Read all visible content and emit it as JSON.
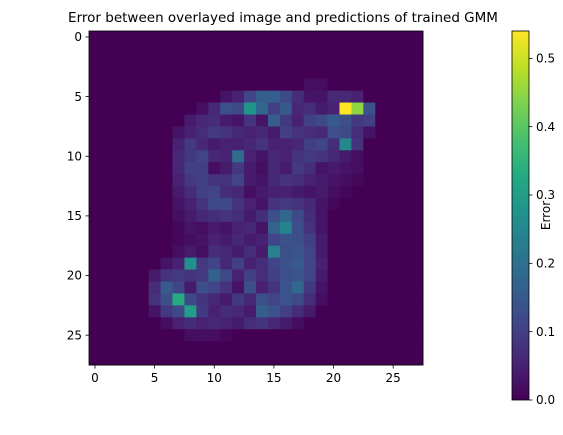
{
  "chart_data": {
    "type": "heatmap",
    "title": "Error between overlayed image and predictions of trained GMM",
    "x_ticks": [
      0,
      5,
      10,
      15,
      20,
      25
    ],
    "y_ticks": [
      0,
      5,
      10,
      15,
      20,
      25
    ],
    "grid_size": [
      28,
      28
    ],
    "colorbar": {
      "label": "Error",
      "range": [
        0.0,
        0.54
      ],
      "ticks": [
        "0.0",
        "0.1",
        "0.2",
        "0.3",
        "0.4",
        "0.5"
      ],
      "tick_values": [
        0.0,
        0.1,
        0.2,
        0.3,
        0.4,
        0.5
      ],
      "colormap": "viridis"
    },
    "grid": false,
    "matrix": [
      [
        0,
        0,
        0,
        0,
        0,
        0,
        0,
        0,
        0,
        0,
        0,
        0,
        0,
        0,
        0,
        0,
        0,
        0,
        0,
        0,
        0,
        0,
        0,
        0,
        0,
        0,
        0,
        0
      ],
      [
        0,
        0,
        0,
        0,
        0,
        0,
        0,
        0,
        0,
        0,
        0,
        0,
        0,
        0,
        0,
        0,
        0,
        0,
        0,
        0,
        0,
        0,
        0,
        0,
        0,
        0,
        0,
        0
      ],
      [
        0,
        0,
        0,
        0,
        0,
        0,
        0,
        0,
        0,
        0,
        0,
        0,
        0,
        0,
        0,
        0,
        0,
        0,
        0,
        0,
        0,
        0,
        0,
        0,
        0,
        0,
        0,
        0
      ],
      [
        0,
        0,
        0,
        0,
        0,
        0,
        0,
        0,
        0,
        0,
        0,
        0,
        0,
        0,
        0,
        0,
        0,
        0,
        0,
        0,
        0,
        0,
        0,
        0,
        0,
        0,
        0,
        0
      ],
      [
        0,
        0,
        0,
        0,
        0,
        0,
        0,
        0,
        0,
        0,
        0,
        0,
        0,
        0,
        0,
        0,
        0,
        0,
        0.02,
        0.02,
        0,
        0,
        0,
        0,
        0,
        0,
        0,
        0
      ],
      [
        0,
        0,
        0,
        0,
        0,
        0,
        0,
        0,
        0,
        0,
        0,
        0.03,
        0.05,
        0.11,
        0.16,
        0.16,
        0.12,
        0.07,
        0.03,
        0.03,
        0.06,
        0.06,
        0.05,
        0,
        0,
        0,
        0,
        0
      ],
      [
        0,
        0,
        0,
        0,
        0,
        0,
        0,
        0,
        0,
        0.02,
        0.06,
        0.13,
        0.12,
        0.28,
        0.18,
        0.1,
        0.15,
        0.06,
        0.07,
        0.04,
        0.05,
        0.54,
        0.45,
        0.14,
        0,
        0,
        0,
        0
      ],
      [
        0,
        0,
        0,
        0,
        0,
        0,
        0,
        0,
        0.04,
        0.06,
        0.07,
        0.04,
        0.03,
        0.08,
        0.03,
        0.16,
        0.09,
        0.05,
        0.1,
        0.12,
        0.15,
        0.13,
        0.09,
        0.1,
        0,
        0,
        0,
        0
      ],
      [
        0,
        0,
        0,
        0,
        0,
        0,
        0,
        0.03,
        0.05,
        0.07,
        0.09,
        0.08,
        0.06,
        0.05,
        0.06,
        0.04,
        0.1,
        0.08,
        0.07,
        0.06,
        0.13,
        0.12,
        0.07,
        0.03,
        0,
        0,
        0,
        0
      ],
      [
        0,
        0,
        0,
        0,
        0,
        0,
        0,
        0.05,
        0.09,
        0.06,
        0.04,
        0.05,
        0.05,
        0.06,
        0.08,
        0.05,
        0.05,
        0.06,
        0.1,
        0.11,
        0.07,
        0.25,
        0.08,
        0,
        0,
        0,
        0,
        0
      ],
      [
        0,
        0,
        0,
        0,
        0,
        0,
        0,
        0.06,
        0.09,
        0.11,
        0.06,
        0.05,
        0.19,
        0.05,
        0.03,
        0.06,
        0.05,
        0.08,
        0.09,
        0.08,
        0.06,
        0.04,
        0.02,
        0,
        0,
        0,
        0,
        0
      ],
      [
        0,
        0,
        0,
        0,
        0,
        0,
        0,
        0.06,
        0.1,
        0.1,
        0.02,
        0.04,
        0.09,
        0.04,
        0.02,
        0.06,
        0.04,
        0.09,
        0.07,
        0.03,
        0.04,
        0.03,
        0.02,
        0,
        0,
        0,
        0,
        0
      ],
      [
        0,
        0,
        0,
        0,
        0,
        0,
        0,
        0.05,
        0.09,
        0.1,
        0.08,
        0.08,
        0.11,
        0.04,
        0.03,
        0.06,
        0.08,
        0.07,
        0.05,
        0.04,
        0.03,
        0.02,
        0.01,
        0,
        0,
        0,
        0,
        0
      ],
      [
        0,
        0,
        0,
        0,
        0,
        0,
        0,
        0.04,
        0.07,
        0.1,
        0.11,
        0.07,
        0.06,
        0.02,
        0.04,
        0.05,
        0.05,
        0.04,
        0.03,
        0.04,
        0.02,
        0.01,
        0,
        0,
        0,
        0,
        0,
        0
      ],
      [
        0,
        0,
        0,
        0,
        0,
        0,
        0,
        0.03,
        0.05,
        0.08,
        0.12,
        0.12,
        0.08,
        0.05,
        0.03,
        0.08,
        0.09,
        0.08,
        0.06,
        0.03,
        0.01,
        0,
        0,
        0,
        0,
        0,
        0,
        0
      ],
      [
        0,
        0,
        0,
        0,
        0,
        0,
        0,
        0.02,
        0.04,
        0.06,
        0.07,
        0.08,
        0.07,
        0.04,
        0.07,
        0.13,
        0.18,
        0.12,
        0.07,
        0.03,
        0,
        0,
        0,
        0,
        0,
        0,
        0,
        0
      ],
      [
        0,
        0,
        0,
        0,
        0,
        0,
        0,
        0.01,
        0.03,
        0.02,
        0.04,
        0.03,
        0.05,
        0.06,
        0.03,
        0.17,
        0.24,
        0.13,
        0.08,
        0.03,
        0,
        0,
        0,
        0,
        0,
        0,
        0,
        0
      ],
      [
        0,
        0,
        0,
        0,
        0,
        0,
        0,
        0.01,
        0.02,
        0.03,
        0.05,
        0.04,
        0.06,
        0.04,
        0.05,
        0.11,
        0.14,
        0.13,
        0.1,
        0.04,
        0,
        0,
        0,
        0,
        0,
        0,
        0,
        0
      ],
      [
        0,
        0,
        0,
        0,
        0,
        0,
        0,
        0.02,
        0.04,
        0.02,
        0.07,
        0.06,
        0.04,
        0.07,
        0.04,
        0.24,
        0.13,
        0.14,
        0.11,
        0.04,
        0,
        0,
        0,
        0,
        0,
        0,
        0,
        0
      ],
      [
        0,
        0,
        0,
        0,
        0,
        0,
        0.03,
        0.05,
        0.27,
        0.09,
        0.11,
        0.06,
        0.1,
        0.05,
        0.07,
        0.11,
        0.14,
        0.15,
        0.11,
        0.05,
        0,
        0,
        0,
        0,
        0,
        0,
        0,
        0
      ],
      [
        0,
        0,
        0,
        0,
        0,
        0.04,
        0.08,
        0.09,
        0.08,
        0.09,
        0.17,
        0.12,
        0.05,
        0.1,
        0.07,
        0.1,
        0.13,
        0.14,
        0.11,
        0.04,
        0,
        0,
        0,
        0,
        0,
        0,
        0,
        0
      ],
      [
        0,
        0,
        0,
        0,
        0,
        0.07,
        0.15,
        0.11,
        0.04,
        0.13,
        0.11,
        0.08,
        0.03,
        0.13,
        0.05,
        0.08,
        0.14,
        0.18,
        0.09,
        0.03,
        0,
        0,
        0,
        0,
        0,
        0,
        0,
        0
      ],
      [
        0,
        0,
        0,
        0,
        0,
        0.08,
        0.13,
        0.33,
        0.12,
        0.08,
        0.06,
        0.04,
        0.09,
        0.06,
        0.13,
        0.11,
        0.14,
        0.12,
        0.07,
        0.02,
        0,
        0,
        0,
        0,
        0,
        0,
        0,
        0
      ],
      [
        0,
        0,
        0,
        0,
        0,
        0.03,
        0.09,
        0.12,
        0.3,
        0.09,
        0.05,
        0.07,
        0.06,
        0.04,
        0.16,
        0.14,
        0.1,
        0.07,
        0.04,
        0,
        0,
        0,
        0,
        0,
        0,
        0,
        0,
        0
      ],
      [
        0,
        0,
        0,
        0,
        0,
        0,
        0.02,
        0.05,
        0.07,
        0.05,
        0.06,
        0.05,
        0.04,
        0.07,
        0.08,
        0.06,
        0.04,
        0.02,
        0,
        0,
        0,
        0,
        0,
        0,
        0,
        0,
        0,
        0
      ],
      [
        0,
        0,
        0,
        0,
        0,
        0,
        0,
        0,
        0.02,
        0.02,
        0.02,
        0.01,
        0,
        0,
        0,
        0,
        0,
        0,
        0,
        0,
        0,
        0,
        0,
        0,
        0,
        0,
        0,
        0
      ],
      [
        0,
        0,
        0,
        0,
        0,
        0,
        0,
        0,
        0,
        0,
        0,
        0,
        0,
        0,
        0,
        0,
        0,
        0,
        0,
        0,
        0,
        0,
        0,
        0,
        0,
        0,
        0,
        0
      ],
      [
        0,
        0,
        0,
        0,
        0,
        0,
        0,
        0,
        0,
        0,
        0,
        0,
        0,
        0,
        0,
        0,
        0,
        0,
        0,
        0,
        0,
        0,
        0,
        0,
        0,
        0,
        0,
        0
      ]
    ]
  }
}
